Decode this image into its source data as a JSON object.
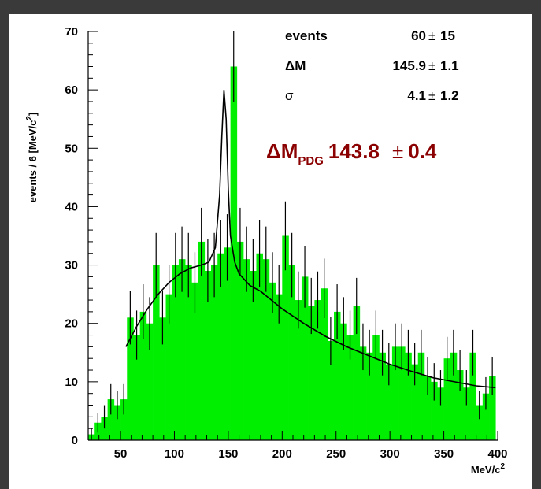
{
  "chart_data": {
    "type": "bar",
    "xlabel": "MeV/c",
    "xlabel_sup": "2",
    "ylabel": "events / 6 [MeV/c",
    "ylabel_sup": "2",
    "ylabel_close": "]",
    "xlim": [
      20,
      400
    ],
    "ylim": [
      0,
      70
    ],
    "x_ticks": [
      50,
      100,
      150,
      200,
      250,
      300,
      350,
      400
    ],
    "y_ticks": [
      0,
      10,
      20,
      30,
      40,
      50,
      60,
      70
    ],
    "bin_width": 6,
    "bin_start": 20,
    "values": [
      1,
      3,
      4,
      7,
      6,
      7,
      21,
      18,
      22,
      20,
      30,
      21,
      25,
      30,
      31,
      30,
      27,
      34,
      29,
      30,
      32,
      33,
      64,
      34,
      31,
      29,
      32,
      31,
      27,
      25,
      35,
      30,
      24,
      28,
      23,
      24,
      26,
      17,
      22,
      20,
      18,
      23,
      16,
      15,
      18,
      15,
      13,
      16,
      16,
      15,
      13,
      15,
      11,
      10,
      9,
      14,
      15,
      12,
      9,
      15,
      6,
      8,
      11
    ],
    "errors": [
      1,
      1.7,
      2,
      2.6,
      2.4,
      2.6,
      4.6,
      4.2,
      4.7,
      4.5,
      5.5,
      4.6,
      5,
      5.5,
      5.6,
      5.5,
      5.2,
      5.8,
      5.4,
      5.5,
      5.7,
      5.7,
      6,
      5.8,
      5.6,
      5.4,
      5.7,
      5.6,
      5.2,
      5,
      5.9,
      5.5,
      4.9,
      5.3,
      4.8,
      4.9,
      5.1,
      4.1,
      4.7,
      4.5,
      4.2,
      4.8,
      4,
      3.9,
      4.2,
      3.9,
      3.6,
      4,
      4,
      3.9,
      3.6,
      3.9,
      3.3,
      3.2,
      3,
      3.7,
      3.9,
      3.5,
      3,
      3.9,
      2.4,
      2.8,
      3.3
    ],
    "fit_curve": {
      "x": [
        55,
        65,
        75,
        85,
        95,
        105,
        115,
        125,
        132,
        138,
        142,
        144,
        146,
        148,
        150,
        152,
        156,
        160,
        170,
        180,
        200,
        220,
        240,
        260,
        280,
        300,
        320,
        340,
        360,
        380,
        398
      ],
      "y": [
        16,
        19.5,
        22.5,
        25,
        27,
        28.5,
        29.5,
        30,
        30.5,
        33,
        42,
        52,
        60,
        55,
        43,
        35,
        30.5,
        28.5,
        26.5,
        25.5,
        22.5,
        20,
        17.8,
        16,
        14.5,
        13,
        11.8,
        10.7,
        10,
        9.3,
        9
      ]
    },
    "color_fill": "#00ee00",
    "color_curve": "#000000",
    "stats": [
      {
        "label": "events",
        "value": "60",
        "pm": "±",
        "error": "15"
      },
      {
        "label": "ΔM",
        "value": "145.9",
        "pm": "±",
        "error": "1.1"
      },
      {
        "label": "σ",
        "value": "4.1",
        "pm": "±",
        "error": "1.2"
      }
    ],
    "pdg": {
      "delta": "Δ",
      "label": "M",
      "sub": "PDG",
      "value": "143.8",
      "pm": "±",
      "error": "0.4",
      "color": "#8b0000"
    }
  }
}
